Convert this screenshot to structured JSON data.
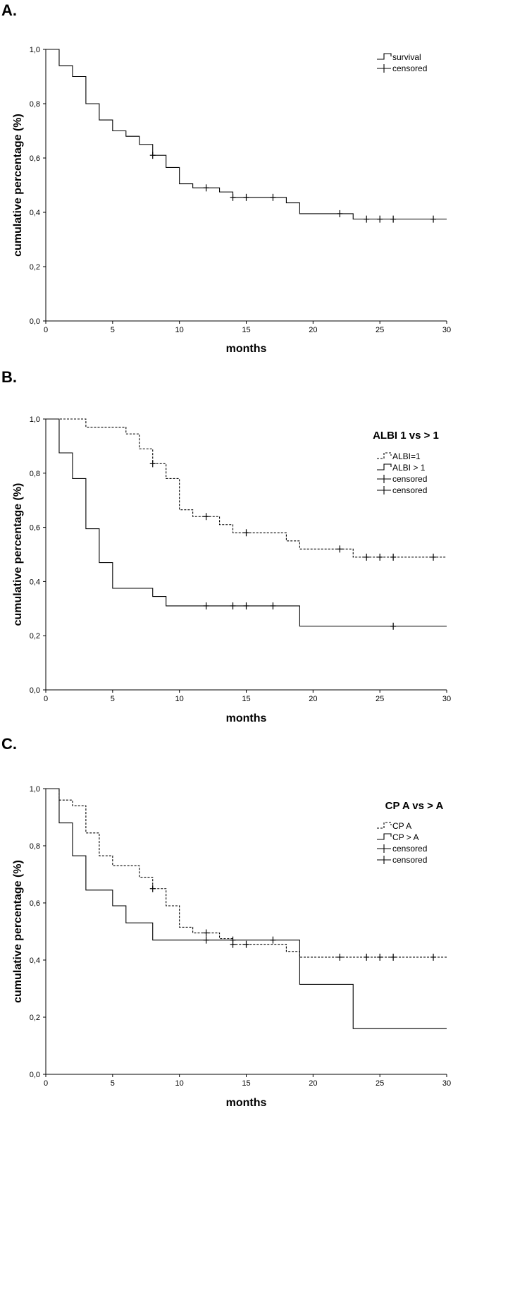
{
  "chart_data": [
    {
      "type": "line",
      "subtype": "kaplan-meier",
      "panel": "A.",
      "xlabel": "months",
      "ylabel": "cumulative percentage (%)",
      "xlim": [
        0,
        30
      ],
      "ylim": [
        0,
        1
      ],
      "xticks": [
        "0",
        "5",
        "10",
        "15",
        "20",
        "25",
        "30"
      ],
      "yticks": [
        "0,0",
        "0,2",
        "0,4",
        "0,6",
        "0,8",
        "1,0"
      ],
      "legend_title": "",
      "legend_position": "top-right",
      "legend": [
        {
          "label": "survival",
          "kind": "step",
          "dash": false
        },
        {
          "label": "censored",
          "kind": "censor",
          "dash": false
        }
      ],
      "series": [
        {
          "name": "survival",
          "dashed": false,
          "start": 1.0,
          "steps": [
            [
              1,
              0.94
            ],
            [
              2,
              0.9
            ],
            [
              3,
              0.8
            ],
            [
              4,
              0.74
            ],
            [
              5,
              0.7
            ],
            [
              6,
              0.68
            ],
            [
              7,
              0.65
            ],
            [
              8,
              0.61
            ],
            [
              9,
              0.565
            ],
            [
              10,
              0.505
            ],
            [
              11,
              0.49
            ],
            [
              13,
              0.475
            ],
            [
              14,
              0.455
            ],
            [
              18,
              0.435
            ],
            [
              19,
              0.395
            ],
            [
              23,
              0.375
            ]
          ],
          "end": 30,
          "censored": [
            8,
            12,
            14,
            15,
            17,
            22,
            24,
            25,
            26,
            29
          ]
        }
      ]
    },
    {
      "type": "line",
      "subtype": "kaplan-meier",
      "panel": "B.",
      "xlabel": "months",
      "ylabel": "cumulative percentage (%)",
      "xlim": [
        0,
        30
      ],
      "ylim": [
        0,
        1
      ],
      "xticks": [
        "0",
        "5",
        "10",
        "15",
        "20",
        "25",
        "30"
      ],
      "yticks": [
        "0,0",
        "0,2",
        "0,4",
        "0,6",
        "0,8",
        "1,0"
      ],
      "legend_title": "ALBI 1 vs > 1",
      "legend_position": "top-right",
      "legend": [
        {
          "label": "ALBI=1",
          "kind": "step",
          "dash": true
        },
        {
          "label": "ALBI > 1",
          "kind": "step",
          "dash": false
        },
        {
          "label": "censored",
          "kind": "censor",
          "dash": false
        },
        {
          "label": "censored",
          "kind": "censor",
          "dash": false
        }
      ],
      "series": [
        {
          "name": "ALBI=1",
          "dashed": true,
          "start": 1.0,
          "steps": [
            [
              3,
              0.97
            ],
            [
              6,
              0.945
            ],
            [
              7,
              0.89
            ],
            [
              8,
              0.835
            ],
            [
              9,
              0.78
            ],
            [
              10,
              0.665
            ],
            [
              11,
              0.64
            ],
            [
              13,
              0.61
            ],
            [
              14,
              0.58
            ],
            [
              18,
              0.55
            ],
            [
              19,
              0.52
            ],
            [
              23,
              0.49
            ]
          ],
          "end": 30,
          "censored": [
            8,
            12,
            15,
            22,
            24,
            25,
            26,
            29
          ]
        },
        {
          "name": "ALBI > 1",
          "dashed": false,
          "start": 1.0,
          "steps": [
            [
              1,
              0.875
            ],
            [
              2,
              0.78
            ],
            [
              3,
              0.595
            ],
            [
              4,
              0.47
            ],
            [
              5,
              0.375
            ],
            [
              8,
              0.345
            ],
            [
              9,
              0.31
            ],
            [
              19,
              0.235
            ]
          ],
          "end": 30,
          "censored": [
            12,
            14,
            15,
            17,
            26
          ]
        }
      ]
    },
    {
      "type": "line",
      "subtype": "kaplan-meier",
      "panel": "C.",
      "xlabel": "months",
      "ylabel": "cumulative percentage (%)",
      "xlim": [
        0,
        30
      ],
      "ylim": [
        0,
        1
      ],
      "xticks": [
        "0",
        "5",
        "10",
        "15",
        "20",
        "25",
        "30"
      ],
      "yticks": [
        "0,0",
        "0,2",
        "0,4",
        "0,6",
        "0,8",
        "1,0"
      ],
      "legend_title": "CP A vs > A",
      "legend_position": "top-right",
      "legend": [
        {
          "label": "CP A",
          "kind": "step",
          "dash": true
        },
        {
          "label": "CP > A",
          "kind": "step",
          "dash": false
        },
        {
          "label": "censored",
          "kind": "censor",
          "dash": false
        },
        {
          "label": "censored",
          "kind": "censor",
          "dash": false
        }
      ],
      "series": [
        {
          "name": "CP A",
          "dashed": true,
          "start": 1.0,
          "steps": [
            [
              1,
              0.96
            ],
            [
              2,
              0.94
            ],
            [
              3,
              0.845
            ],
            [
              4,
              0.765
            ],
            [
              5,
              0.73
            ],
            [
              7,
              0.69
            ],
            [
              8,
              0.65
            ],
            [
              9,
              0.59
            ],
            [
              10,
              0.515
            ],
            [
              11,
              0.495
            ],
            [
              13,
              0.475
            ],
            [
              14,
              0.455
            ],
            [
              18,
              0.43
            ],
            [
              19,
              0.41
            ]
          ],
          "end": 30,
          "censored": [
            8,
            12,
            14,
            15,
            22,
            24,
            25,
            26,
            29
          ]
        },
        {
          "name": "CP > A",
          "dashed": false,
          "start": 1.0,
          "steps": [
            [
              1,
              0.88
            ],
            [
              2,
              0.765
            ],
            [
              3,
              0.645
            ],
            [
              5,
              0.59
            ],
            [
              6,
              0.53
            ],
            [
              8,
              0.47
            ],
            [
              19,
              0.315
            ],
            [
              23,
              0.16
            ]
          ],
          "end": 30,
          "censored": [
            12,
            14,
            17
          ]
        }
      ]
    }
  ]
}
